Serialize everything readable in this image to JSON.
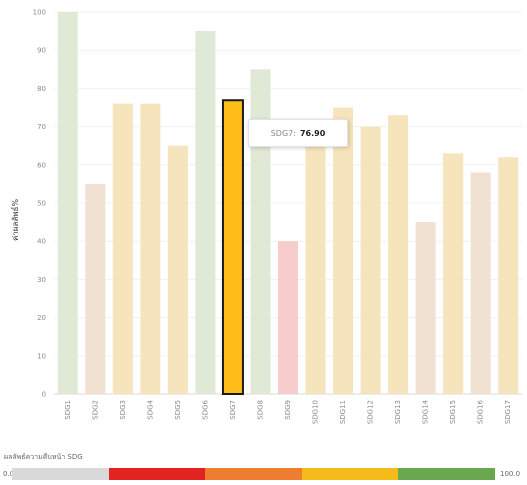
{
  "chart_data": {
    "type": "bar",
    "categories": [
      "SDG1",
      "SDG2",
      "SDG3",
      "SDG4",
      "SDG5",
      "SDG6",
      "SDG7",
      "SDG8",
      "SDG9",
      "SDG10",
      "SDG11",
      "SDG12",
      "SDG13",
      "SDG14",
      "SDG15",
      "SDG16",
      "SDG17"
    ],
    "values": [
      100,
      55,
      76,
      76,
      65,
      95,
      76.9,
      85,
      40,
      65,
      75,
      70,
      73,
      45,
      63,
      58,
      62
    ],
    "bar_colors": [
      "#dfe9d5",
      "#f1e1d3",
      "#f6e4bd",
      "#f6e4bd",
      "#f6e4bd",
      "#dfe9d5",
      "#ffbd19",
      "#dfe9d5",
      "#f6cccc",
      "#f6e4bd",
      "#f6e4bd",
      "#f6e4bd",
      "#f6e4bd",
      "#f1e1d3",
      "#f6e4bd",
      "#f1e1d3",
      "#f6e4bd"
    ],
    "highlight_index": 6,
    "ylabel": "ค่าผลลัพธ์%",
    "ylim": [
      0,
      100
    ],
    "yticks": [
      0,
      10,
      20,
      30,
      40,
      50,
      60,
      70,
      80,
      90,
      100
    ],
    "grid": true,
    "tooltip": {
      "label": "SDG7:",
      "value": "76.90"
    }
  },
  "legend": {
    "title": "ผลลัพธ์ความคืบหน้า SDG",
    "min_label": "0.0",
    "max_label": "100.0",
    "colors": [
      "#d9d9d9",
      "#e3231f",
      "#ee7d2f",
      "#f5bb1a",
      "#6aa84f"
    ]
  }
}
